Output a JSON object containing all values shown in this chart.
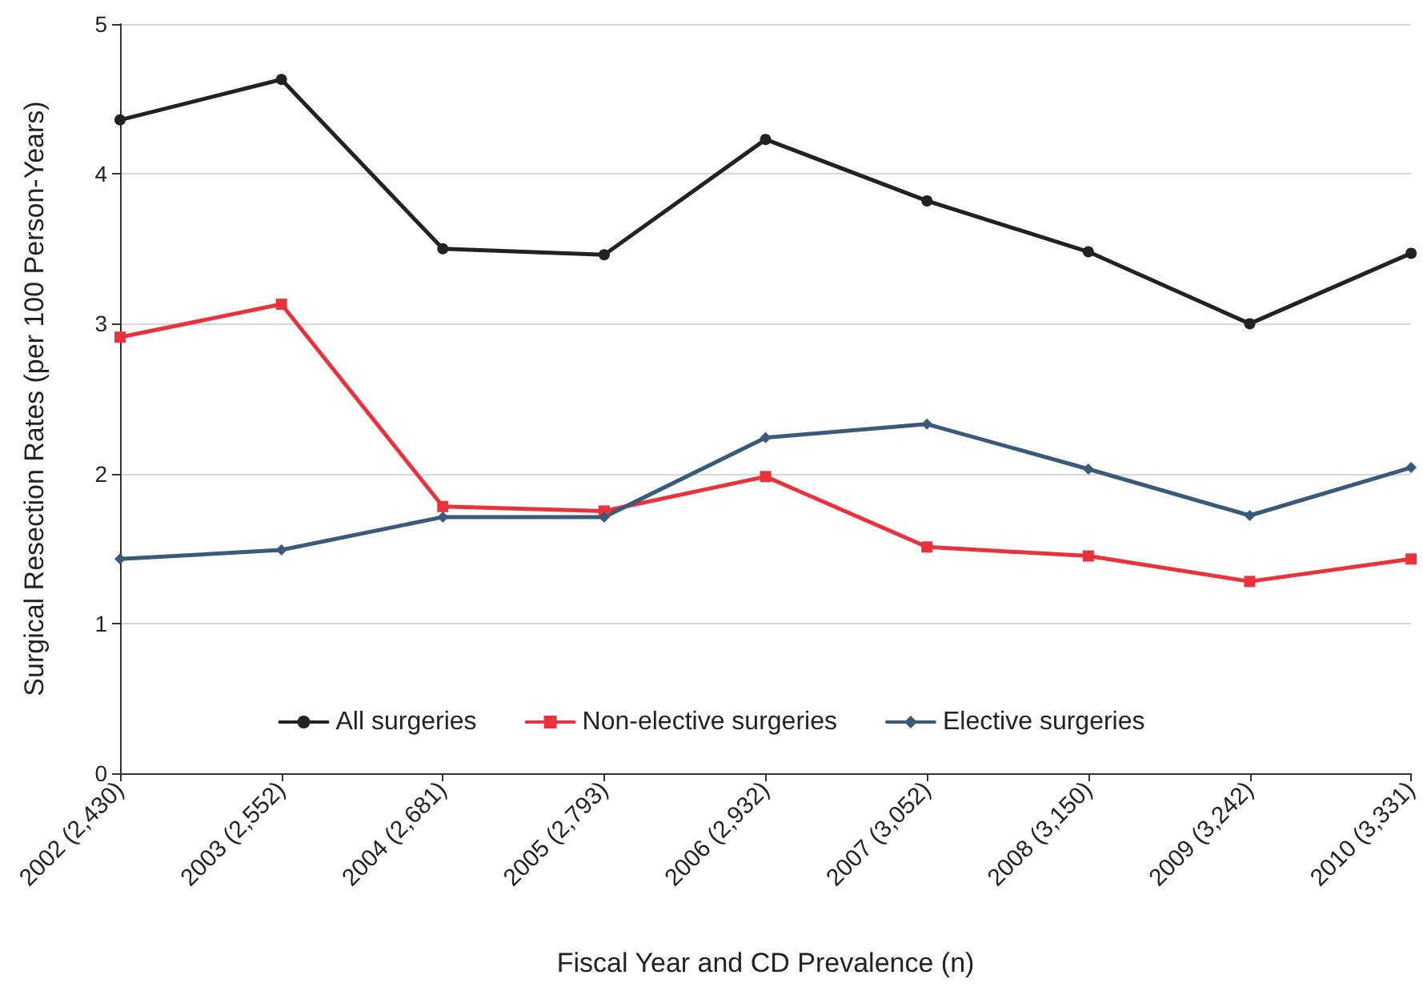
{
  "chart_data": {
    "type": "line",
    "xlabel": "Fiscal Year and CD Prevalence (n)",
    "ylabel": "Surgical Resection Rates (per 100 Person-Years)",
    "categories": [
      "2002 (2,430)",
      "2003 (2,552)",
      "2004 (2,681)",
      "2005 (2,793)",
      "2006 (2,932)",
      "2007 (3,052)",
      "2008 (3,150)",
      "2009 (3,242)",
      "2010 (3,331)"
    ],
    "series": [
      {
        "name": "All surgeries",
        "color": "#222222",
        "marker": "circle",
        "values": [
          4.36,
          4.63,
          3.5,
          3.46,
          4.23,
          3.82,
          3.48,
          3.0,
          3.47
        ]
      },
      {
        "name": "Non-elective surgeries",
        "color": "#e8323c",
        "marker": "square",
        "values": [
          2.91,
          3.13,
          1.78,
          1.75,
          1.98,
          1.51,
          1.45,
          1.28,
          1.43
        ]
      },
      {
        "name": "Elective surgeries",
        "color": "#3a5a7a",
        "marker": "diamond",
        "values": [
          1.43,
          1.49,
          1.71,
          1.71,
          2.24,
          2.33,
          2.03,
          1.72,
          2.04
        ]
      }
    ],
    "ylim": [
      0,
      5
    ],
    "yticks": [
      0,
      1,
      2,
      3,
      4,
      5
    ],
    "grid": "y",
    "legend": "bottom",
    "line_style": "solid"
  }
}
